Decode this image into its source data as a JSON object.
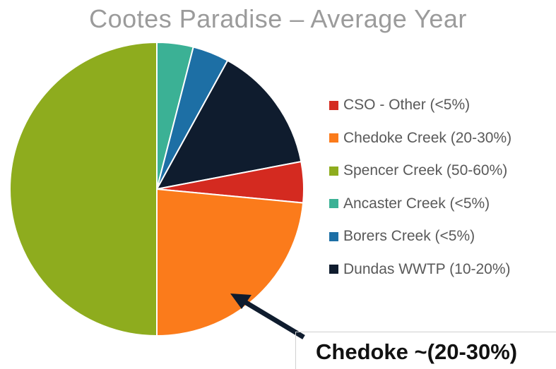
{
  "chart_data": {
    "type": "pie",
    "title": "Cootes Paradise – Average Year",
    "slices": [
      {
        "label": "Ancaster Creek (<5%)",
        "value": 4,
        "color": "#3bb195"
      },
      {
        "label": "Borers Creek (<5%)",
        "value": 4,
        "color": "#1d6fa5"
      },
      {
        "label": "Dundas WWTP (10-20%)",
        "value": 14,
        "color": "#0f1c2e"
      },
      {
        "label": "CSO - Other (<5%)",
        "value": 4.5,
        "color": "#d42a20"
      },
      {
        "label": "Chedoke Creek (20-30%)",
        "value": 23.5,
        "color": "#fb7b1b"
      },
      {
        "label": "Spencer Creek (50-60%)",
        "value": 50,
        "color": "#8eac1e"
      }
    ],
    "legend": {
      "position": "right",
      "items": [
        {
          "label": "CSO - Other (<5%)",
          "color": "#d42a20"
        },
        {
          "label": "Chedoke Creek (20-30%)",
          "color": "#fb7b1b"
        },
        {
          "label": "Spencer Creek (50-60%)",
          "color": "#8eac1e"
        },
        {
          "label": "Ancaster Creek (<5%)",
          "color": "#3bb195"
        },
        {
          "label": "Borers Creek (<5%)",
          "color": "#1d6fa5"
        },
        {
          "label": "Dundas WWTP (10-20%)",
          "color": "#0f1c2e"
        }
      ]
    },
    "annotation": {
      "text": "Chedoke ~(20-30%)",
      "points_to": "Chedoke Creek (20-30%)"
    }
  }
}
